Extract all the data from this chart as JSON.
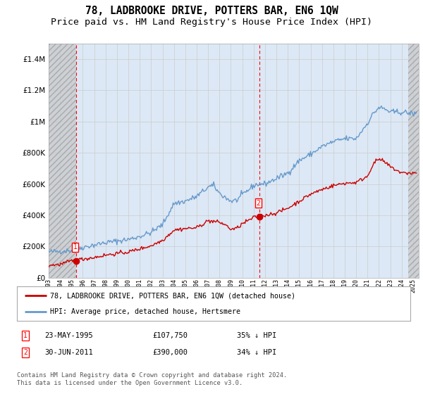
{
  "title": "78, LADBROOKE DRIVE, POTTERS BAR, EN6 1QW",
  "subtitle": "Price paid vs. HM Land Registry's House Price Index (HPI)",
  "ylim": [
    0,
    1500000
  ],
  "yticks": [
    0,
    200000,
    400000,
    600000,
    800000,
    1000000,
    1200000,
    1400000
  ],
  "ytick_labels": [
    "£0",
    "£200K",
    "£400K",
    "£600K",
    "£800K",
    "£1M",
    "£1.2M",
    "£1.4M"
  ],
  "xlim": [
    1993,
    2025.5
  ],
  "legend_entries": [
    "78, LADBROOKE DRIVE, POTTERS BAR, EN6 1QW (detached house)",
    "HPI: Average price, detached house, Hertsmere"
  ],
  "legend_colors": [
    "#cc0000",
    "#6699cc"
  ],
  "sale1_label": "1",
  "sale1_date": "23-MAY-1995",
  "sale1_price": "£107,750",
  "sale1_hpi": "35% ↓ HPI",
  "sale1_x": 1995.39,
  "sale1_y": 107750,
  "sale2_label": "2",
  "sale2_date": "30-JUN-2011",
  "sale2_price": "£390,000",
  "sale2_hpi": "34% ↓ HPI",
  "sale2_x": 2011.5,
  "sale2_y": 390000,
  "grid_color": "#cccccc",
  "bg_color": "#dce8f5",
  "hatch_face": "#c8c8c8",
  "footer": "Contains HM Land Registry data © Crown copyright and database right 2024.\nThis data is licensed under the Open Government Licence v3.0.",
  "title_fontsize": 10.5,
  "subtitle_fontsize": 9.5
}
